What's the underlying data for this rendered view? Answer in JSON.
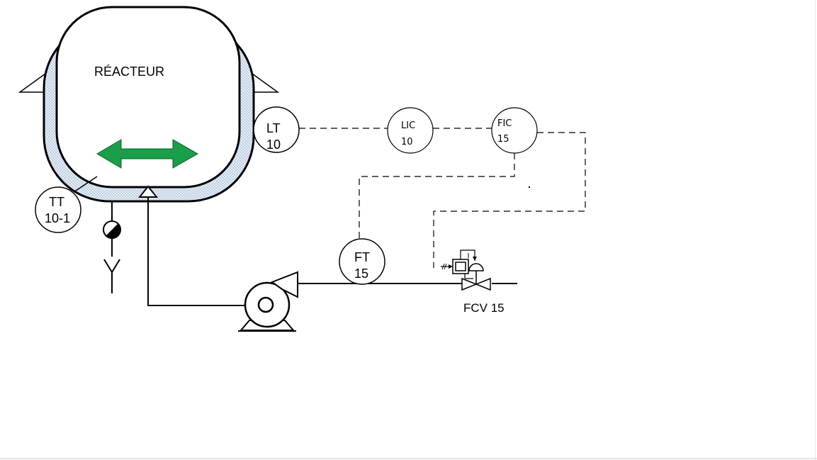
{
  "reactor": {
    "label": "RÉACTEUR"
  },
  "instruments": {
    "lt": {
      "tag": "LT",
      "num": "10"
    },
    "lic": {
      "tag": "LIC",
      "num": "10"
    },
    "fic": {
      "tag": "FIC",
      "num": "15"
    },
    "tt": {
      "tag": "TT",
      "num": "10-1"
    },
    "ft": {
      "tag": "FT",
      "num": "15"
    }
  },
  "valve": {
    "label": "FCV 15"
  },
  "colors": {
    "agitator": "#1a9e48",
    "jacket_fill": "#dfe8f4",
    "line": "#000000"
  }
}
